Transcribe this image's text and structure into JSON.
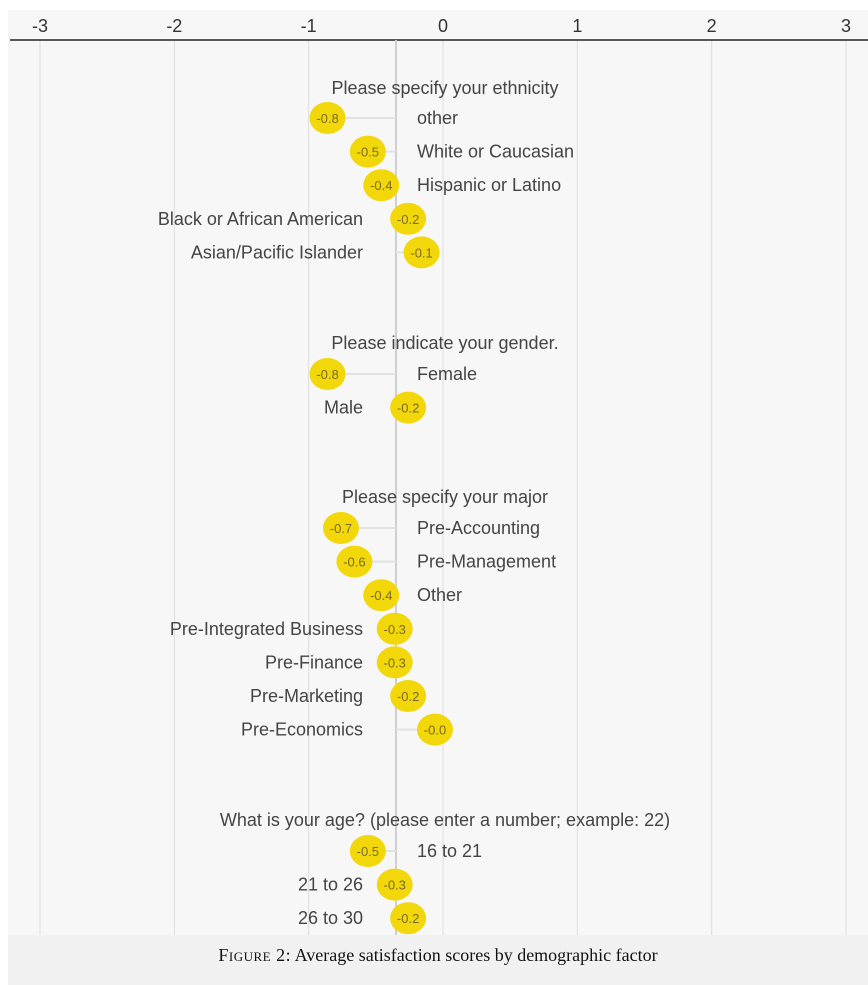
{
  "chart_data": {
    "type": "scatter",
    "xlim": [
      -3,
      3
    ],
    "x_ticks": [
      "-3",
      "-2",
      "-1",
      "0",
      "1",
      "2",
      "3"
    ],
    "grid": true,
    "reference_line_x": -0.35,
    "marker_color": "#f2d70a",
    "groups": [
      {
        "title": "Please specify your ethnicity",
        "items": [
          {
            "label": "other",
            "value": -0.8,
            "value_label": "-0.8"
          },
          {
            "label": "White or Caucasian",
            "value": -0.5,
            "value_label": "-0.5"
          },
          {
            "label": "Hispanic or Latino",
            "value": -0.4,
            "value_label": "-0.4"
          },
          {
            "label": "Black or African American",
            "value": -0.2,
            "value_label": "-0.2"
          },
          {
            "label": "Asian/Pacific Islander",
            "value": -0.1,
            "value_label": "-0.1"
          }
        ]
      },
      {
        "title": "Please indicate your gender.",
        "items": [
          {
            "label": "Female",
            "value": -0.8,
            "value_label": "-0.8"
          },
          {
            "label": "Male",
            "value": -0.2,
            "value_label": "-0.2"
          }
        ]
      },
      {
        "title": "Please specify your major",
        "items": [
          {
            "label": "Pre-Accounting",
            "value": -0.7,
            "value_label": "-0.7"
          },
          {
            "label": "Pre-Management",
            "value": -0.6,
            "value_label": "-0.6"
          },
          {
            "label": "Other",
            "value": -0.4,
            "value_label": "-0.4"
          },
          {
            "label": "Pre-Integrated Business",
            "value": -0.3,
            "value_label": "-0.3"
          },
          {
            "label": "Pre-Finance",
            "value": -0.3,
            "value_label": "-0.3"
          },
          {
            "label": "Pre-Marketing",
            "value": -0.2,
            "value_label": "-0.2"
          },
          {
            "label": "Pre-Economics",
            "value": 0.0,
            "value_label": "-0.0"
          }
        ]
      },
      {
        "title": "What is your age? (please enter a number; example: 22)",
        "items": [
          {
            "label": "16 to 21",
            "value": -0.5,
            "value_label": "-0.5"
          },
          {
            "label": "21 to 26",
            "value": -0.3,
            "value_label": "-0.3"
          },
          {
            "label": "26 to 30",
            "value": -0.2,
            "value_label": "-0.2"
          }
        ]
      }
    ]
  },
  "caption": {
    "prefix": "Figure 2:",
    "text": "Average satisfaction scores by demographic factor"
  }
}
